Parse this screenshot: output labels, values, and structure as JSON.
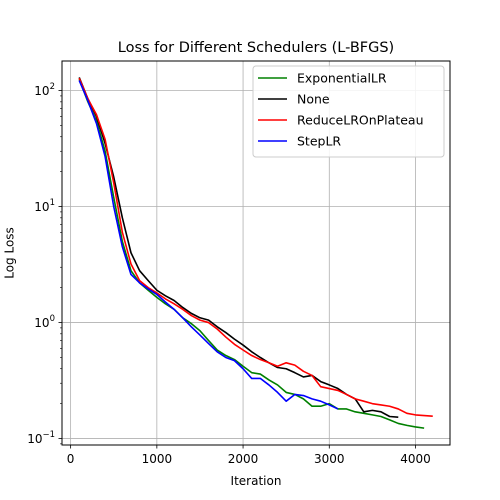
{
  "chart_data": {
    "type": "line",
    "title": "Loss for Different Schedulers (L-BFGS)",
    "xlabel": "Iteration",
    "ylabel": "Log Loss",
    "yscale": "log",
    "xlim": [
      -100,
      4400
    ],
    "ylim": [
      0.088,
      180
    ],
    "grid": true,
    "legend_position": "top-right",
    "x_ticks": [
      0,
      1000,
      2000,
      3000,
      4000
    ],
    "x_tick_labels": [
      "0",
      "1000",
      "2000",
      "3000",
      "4000"
    ],
    "y_ticks": [
      0.1,
      1,
      10,
      100
    ],
    "y_tick_labels": [
      "10",
      "10",
      "10",
      "10"
    ],
    "y_tick_exponents": [
      "−1",
      "0",
      "1",
      "2"
    ],
    "series": [
      {
        "name": "ExponentialLR",
        "color": "#008000",
        "x": [
          100,
          200,
          300,
          400,
          500,
          600,
          700,
          800,
          900,
          1000,
          1100,
          1200,
          1300,
          1400,
          1500,
          1600,
          1700,
          1800,
          1900,
          2000,
          2100,
          2200,
          2300,
          2400,
          2500,
          2600,
          2700,
          2800,
          2900,
          3000,
          3100,
          3200,
          3300,
          3400,
          3500,
          3600,
          3700,
          3800,
          3900,
          4000,
          4100
        ],
        "y": [
          125,
          80,
          55,
          30,
          12,
          5.0,
          2.8,
          2.2,
          1.9,
          1.65,
          1.45,
          1.3,
          1.1,
          0.98,
          0.85,
          0.7,
          0.58,
          0.52,
          0.48,
          0.42,
          0.37,
          0.36,
          0.32,
          0.29,
          0.25,
          0.24,
          0.22,
          0.19,
          0.19,
          0.2,
          0.18,
          0.18,
          0.17,
          0.165,
          0.16,
          0.155,
          0.145,
          0.135,
          0.13,
          0.126,
          0.123
        ]
      },
      {
        "name": "None",
        "color": "#000000",
        "x": [
          100,
          200,
          300,
          400,
          500,
          600,
          700,
          800,
          900,
          1000,
          1100,
          1200,
          1300,
          1400,
          1500,
          1600,
          1700,
          1800,
          1900,
          2000,
          2100,
          2200,
          2300,
          2400,
          2500,
          2600,
          2700,
          2800,
          2900,
          3000,
          3100,
          3200,
          3300,
          3400,
          3500,
          3600,
          3700,
          3800
        ],
        "y": [
          130,
          85,
          60,
          35,
          18,
          8,
          4.0,
          2.8,
          2.3,
          1.9,
          1.7,
          1.55,
          1.35,
          1.2,
          1.1,
          1.05,
          0.92,
          0.82,
          0.72,
          0.64,
          0.56,
          0.5,
          0.45,
          0.41,
          0.4,
          0.37,
          0.34,
          0.35,
          0.31,
          0.29,
          0.27,
          0.24,
          0.22,
          0.17,
          0.175,
          0.17,
          0.155,
          0.153
        ]
      },
      {
        "name": "ReduceLROnPlateau",
        "color": "#ff0000",
        "x": [
          100,
          200,
          300,
          400,
          500,
          600,
          700,
          800,
          900,
          1000,
          1100,
          1200,
          1300,
          1400,
          1500,
          1600,
          1700,
          1800,
          1900,
          2000,
          2100,
          2200,
          2300,
          2400,
          2500,
          2600,
          2700,
          2800,
          2900,
          3000,
          3100,
          3200,
          3300,
          3400,
          3500,
          3600,
          3700,
          3800,
          3900,
          4000,
          4100,
          4200
        ],
        "y": [
          128,
          85,
          62,
          38,
          16,
          6,
          3.2,
          2.3,
          2.0,
          1.8,
          1.6,
          1.45,
          1.3,
          1.15,
          1.05,
          1.0,
          0.88,
          0.75,
          0.65,
          0.58,
          0.52,
          0.48,
          0.45,
          0.42,
          0.45,
          0.43,
          0.38,
          0.35,
          0.28,
          0.27,
          0.26,
          0.24,
          0.22,
          0.21,
          0.2,
          0.195,
          0.19,
          0.18,
          0.165,
          0.16,
          0.158,
          0.156
        ]
      },
      {
        "name": "StepLR",
        "color": "#0000ff",
        "x": [
          100,
          200,
          300,
          400,
          500,
          600,
          700,
          800,
          900,
          1000,
          1100,
          1200,
          1300,
          1400,
          1500,
          1600,
          1700,
          1800,
          1900,
          2000,
          2100,
          2200,
          2300,
          2400,
          2500,
          2600,
          2700,
          2800,
          2900,
          3000,
          3100
        ],
        "y": [
          122,
          82,
          52,
          27,
          10,
          4.5,
          2.6,
          2.2,
          1.95,
          1.75,
          1.5,
          1.3,
          1.1,
          0.92,
          0.78,
          0.66,
          0.56,
          0.5,
          0.47,
          0.4,
          0.33,
          0.33,
          0.29,
          0.25,
          0.21,
          0.24,
          0.235,
          0.22,
          0.21,
          0.195,
          0.18
        ]
      }
    ]
  }
}
